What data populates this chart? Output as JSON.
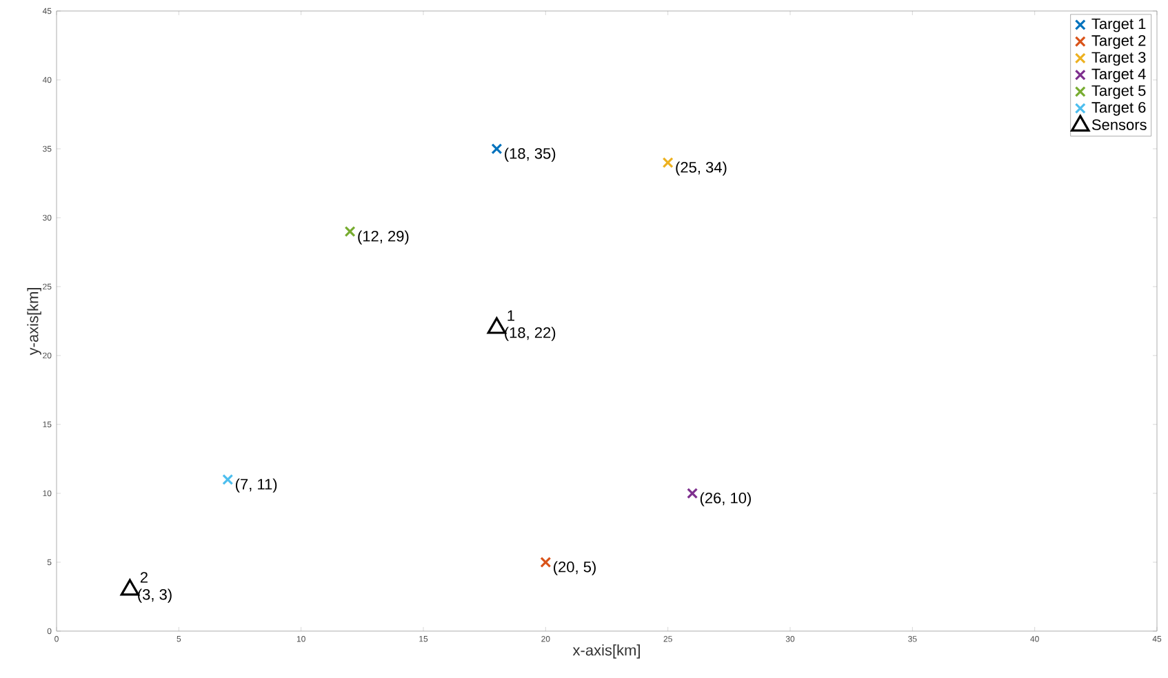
{
  "chart_data": {
    "type": "scatter",
    "xlabel": "x-axis[km]",
    "ylabel": "y-axis[km]",
    "xlim": [
      0,
      45
    ],
    "ylim": [
      0,
      45
    ],
    "xticks": [
      0,
      5,
      10,
      15,
      20,
      25,
      30,
      35,
      40,
      45
    ],
    "yticks": [
      0,
      5,
      10,
      15,
      20,
      25,
      30,
      35,
      40,
      45
    ],
    "grid": false,
    "legend": "top right",
    "marker": "cross",
    "series": [
      {
        "name": "Target 1",
        "color": "#0072bd",
        "x": [
          18
        ],
        "values": [
          35
        ]
      },
      {
        "name": "Target 2",
        "color": "#d95319",
        "x": [
          20
        ],
        "values": [
          5
        ]
      },
      {
        "name": "Target 3",
        "color": "#edb120",
        "x": [
          25
        ],
        "values": [
          34
        ]
      },
      {
        "name": "Target 4",
        "color": "#7e2f8e",
        "x": [
          26
        ],
        "values": [
          10
        ]
      },
      {
        "name": "Target 5",
        "color": "#77ac30",
        "x": [
          12
        ],
        "values": [
          29
        ]
      },
      {
        "name": "Target 6",
        "color": "#4dbeee",
        "x": [
          7
        ],
        "values": [
          11
        ]
      },
      {
        "name": "Sensors",
        "color": "#000000",
        "marker": "triangle",
        "x": [
          18,
          3
        ],
        "values": [
          22,
          3
        ]
      }
    ],
    "annotations": [
      {
        "text": "(18, 35)",
        "x": 18,
        "y": 35
      },
      {
        "text": "(25, 34)",
        "x": 25,
        "y": 34
      },
      {
        "text": "(12, 29)",
        "x": 12,
        "y": 29
      },
      {
        "text": "(18, 22)",
        "x": 18,
        "y": 22
      },
      {
        "text": "(7, 11)",
        "x": 7,
        "y": 11
      },
      {
        "text": "(26, 10)",
        "x": 26,
        "y": 10
      },
      {
        "text": "(20, 5)",
        "x": 20,
        "y": 5
      },
      {
        "text": "(3, 3)",
        "x": 3,
        "y": 3
      },
      {
        "text": "1",
        "x": 18,
        "y": 22
      },
      {
        "text": "2",
        "x": 3,
        "y": 3
      }
    ]
  }
}
